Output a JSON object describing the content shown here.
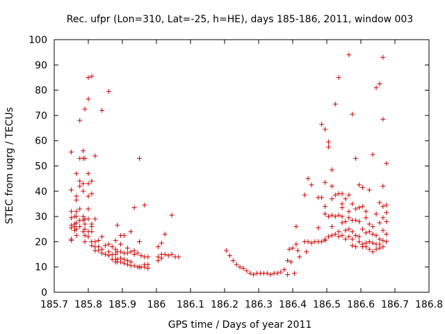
{
  "chart_data": {
    "type": "scatter",
    "title": "Rec. ufpr (Lon=310, Lat=-25, h=HE), days 185-186, 2011, window 003",
    "xlabel": "GPS time / Days of year 2011",
    "ylabel": "STEC from uqrg / TECUs",
    "xlim": [
      185.7,
      186.8
    ],
    "ylim": [
      0,
      100
    ],
    "xticks": [
      185.7,
      185.8,
      185.9,
      186,
      186.1,
      186.2,
      186.3,
      186.4,
      186.5,
      186.6,
      186.7,
      186.8
    ],
    "xtick_labels": [
      "185.7",
      "185.8",
      "185.9",
      "186",
      "186.1",
      "186.2",
      "186.3",
      "186.4",
      "186.5",
      "186.6",
      "186.7",
      "186.8"
    ],
    "yticks": [
      0,
      10,
      20,
      30,
      40,
      50,
      60,
      70,
      80,
      90,
      100
    ],
    "ytick_labels": [
      "0",
      "10",
      "20",
      "30",
      "40",
      "50",
      "60",
      "70",
      "80",
      "90",
      "100"
    ],
    "grid": false,
    "marker": "plus",
    "color": "#cc0000",
    "series": [
      {
        "name": "STEC",
        "points": [
          [
            185.75,
            55.5
          ],
          [
            185.75,
            40.5
          ],
          [
            185.75,
            32
          ],
          [
            185.75,
            29.5
          ],
          [
            185.75,
            26.5
          ],
          [
            185.75,
            25.5
          ],
          [
            185.75,
            21
          ],
          [
            185.75,
            20.5
          ],
          [
            185.76,
            30
          ],
          [
            185.76,
            27
          ],
          [
            185.76,
            26
          ],
          [
            185.76,
            24.5
          ],
          [
            185.765,
            47
          ],
          [
            185.765,
            38
          ],
          [
            185.765,
            36.5
          ],
          [
            185.765,
            32
          ],
          [
            185.765,
            30
          ],
          [
            185.765,
            27.5
          ],
          [
            185.765,
            25
          ],
          [
            185.765,
            22.5
          ],
          [
            185.775,
            68
          ],
          [
            185.775,
            53
          ],
          [
            185.775,
            44
          ],
          [
            185.775,
            42
          ],
          [
            185.775,
            33
          ],
          [
            185.775,
            28.5
          ],
          [
            185.775,
            26
          ],
          [
            185.785,
            56
          ],
          [
            185.785,
            53
          ],
          [
            185.785,
            43
          ],
          [
            185.785,
            40
          ],
          [
            185.785,
            30
          ],
          [
            185.785,
            28.5
          ],
          [
            185.785,
            24
          ],
          [
            185.79,
            72.5
          ],
          [
            185.79,
            53
          ],
          [
            185.79,
            29
          ],
          [
            185.79,
            27
          ],
          [
            185.79,
            25
          ],
          [
            185.79,
            22.5
          ],
          [
            185.79,
            20
          ],
          [
            185.8,
            85
          ],
          [
            185.8,
            76.5
          ],
          [
            185.8,
            47
          ],
          [
            185.8,
            43
          ],
          [
            185.8,
            38
          ],
          [
            185.8,
            33
          ],
          [
            185.8,
            29
          ],
          [
            185.8,
            24
          ],
          [
            185.8,
            22
          ],
          [
            185.81,
            85.5
          ],
          [
            185.81,
            44
          ],
          [
            185.81,
            39
          ],
          [
            185.81,
            27
          ],
          [
            185.81,
            26
          ],
          [
            185.81,
            24
          ],
          [
            185.81,
            20
          ],
          [
            185.81,
            18.5
          ],
          [
            185.82,
            54
          ],
          [
            185.82,
            29
          ],
          [
            185.82,
            20
          ],
          [
            185.82,
            18
          ],
          [
            185.82,
            16.5
          ],
          [
            185.83,
            20.5
          ],
          [
            185.83,
            18
          ],
          [
            185.83,
            16.5
          ],
          [
            185.84,
            72
          ],
          [
            185.84,
            22
          ],
          [
            185.84,
            17
          ],
          [
            185.84,
            15.5
          ],
          [
            185.85,
            18.5
          ],
          [
            185.85,
            15
          ],
          [
            185.86,
            79.5
          ],
          [
            185.86,
            19
          ],
          [
            185.86,
            16
          ],
          [
            185.86,
            14.5
          ],
          [
            185.87,
            18
          ],
          [
            185.87,
            15
          ],
          [
            185.87,
            13
          ],
          [
            185.88,
            20.5
          ],
          [
            185.88,
            17
          ],
          [
            185.88,
            15
          ],
          [
            185.88,
            13
          ],
          [
            185.88,
            12
          ],
          [
            185.885,
            26.5
          ],
          [
            185.885,
            16
          ],
          [
            185.885,
            13
          ],
          [
            185.885,
            12
          ],
          [
            185.895,
            22.5
          ],
          [
            185.895,
            19
          ],
          [
            185.895,
            16
          ],
          [
            185.895,
            13.5
          ],
          [
            185.895,
            12
          ],
          [
            185.905,
            22.5
          ],
          [
            185.905,
            15.5
          ],
          [
            185.905,
            13
          ],
          [
            185.905,
            11.5
          ],
          [
            185.915,
            17.5
          ],
          [
            185.915,
            15.5
          ],
          [
            185.915,
            12.5
          ],
          [
            185.915,
            11
          ],
          [
            185.925,
            24
          ],
          [
            185.925,
            16
          ],
          [
            185.925,
            12
          ],
          [
            185.925,
            10.5
          ],
          [
            185.935,
            33.5
          ],
          [
            185.935,
            16.5
          ],
          [
            185.935,
            15
          ],
          [
            185.935,
            10.5
          ],
          [
            185.945,
            15.5
          ],
          [
            185.945,
            10
          ],
          [
            185.95,
            53
          ],
          [
            185.95,
            20
          ],
          [
            185.95,
            10
          ],
          [
            185.955,
            14.5
          ],
          [
            185.955,
            10
          ],
          [
            185.965,
            34.5
          ],
          [
            185.965,
            14
          ],
          [
            185.965,
            11
          ],
          [
            185.965,
            10
          ],
          [
            185.975,
            14
          ],
          [
            185.975,
            11
          ],
          [
            185.975,
            9.5
          ],
          [
            186.005,
            18
          ],
          [
            186.005,
            14
          ],
          [
            186.005,
            12.5
          ],
          [
            186.015,
            19.5
          ],
          [
            186.015,
            15
          ],
          [
            186.015,
            13.5
          ],
          [
            186.025,
            23
          ],
          [
            186.025,
            15
          ],
          [
            186.035,
            14.5
          ],
          [
            186.045,
            30.5
          ],
          [
            186.045,
            15
          ],
          [
            186.055,
            14
          ],
          [
            186.065,
            14
          ],
          [
            186.205,
            16.5
          ],
          [
            186.215,
            14.5
          ],
          [
            186.225,
            12.5
          ],
          [
            186.235,
            11
          ],
          [
            186.245,
            10
          ],
          [
            186.255,
            9.5
          ],
          [
            186.265,
            8.5
          ],
          [
            186.275,
            7.5
          ],
          [
            186.285,
            7
          ],
          [
            186.295,
            7.5
          ],
          [
            186.305,
            7.5
          ],
          [
            186.315,
            7.5
          ],
          [
            186.325,
            7.5
          ],
          [
            186.335,
            7
          ],
          [
            186.345,
            7.5
          ],
          [
            186.355,
            7.5
          ],
          [
            186.365,
            8
          ],
          [
            186.375,
            9
          ],
          [
            186.385,
            12.5
          ],
          [
            186.385,
            7
          ],
          [
            186.39,
            17
          ],
          [
            186.395,
            12
          ],
          [
            186.4,
            17.5
          ],
          [
            186.405,
            7.5
          ],
          [
            186.41,
            26
          ],
          [
            186.41,
            19
          ],
          [
            186.415,
            16.5
          ],
          [
            186.42,
            14
          ],
          [
            186.435,
            38.5
          ],
          [
            186.435,
            20
          ],
          [
            186.44,
            16
          ],
          [
            186.445,
            45
          ],
          [
            186.445,
            20
          ],
          [
            186.455,
            42.5
          ],
          [
            186.455,
            19.5
          ],
          [
            186.465,
            20
          ],
          [
            186.475,
            37.5
          ],
          [
            186.475,
            25.5
          ],
          [
            186.475,
            20
          ],
          [
            186.485,
            66.5
          ],
          [
            186.485,
            37.5
          ],
          [
            186.485,
            20
          ],
          [
            186.495,
            64.5
          ],
          [
            186.495,
            43.5
          ],
          [
            186.495,
            34
          ],
          [
            186.495,
            31
          ],
          [
            186.495,
            21
          ],
          [
            186.495,
            20.5
          ],
          [
            186.505,
            59.5
          ],
          [
            186.505,
            57.5
          ],
          [
            186.505,
            30
          ],
          [
            186.505,
            22
          ],
          [
            186.515,
            48.5
          ],
          [
            186.515,
            42
          ],
          [
            186.515,
            37
          ],
          [
            186.515,
            30.5
          ],
          [
            186.515,
            26
          ],
          [
            186.515,
            22.5
          ],
          [
            186.525,
            74.5
          ],
          [
            186.525,
            38.5
          ],
          [
            186.525,
            30
          ],
          [
            186.525,
            23
          ],
          [
            186.535,
            85
          ],
          [
            186.535,
            39
          ],
          [
            186.535,
            30.5
          ],
          [
            186.535,
            24
          ],
          [
            186.535,
            22
          ],
          [
            186.545,
            39
          ],
          [
            186.545,
            35
          ],
          [
            186.545,
            33.5
          ],
          [
            186.545,
            30
          ],
          [
            186.545,
            27.5
          ],
          [
            186.545,
            22.5
          ],
          [
            186.555,
            37
          ],
          [
            186.555,
            28
          ],
          [
            186.555,
            24.5
          ],
          [
            186.555,
            21
          ],
          [
            186.565,
            94
          ],
          [
            186.565,
            38.5
          ],
          [
            186.565,
            32
          ],
          [
            186.565,
            29.5
          ],
          [
            186.565,
            25
          ],
          [
            186.565,
            22
          ],
          [
            186.575,
            70.5
          ],
          [
            186.575,
            35
          ],
          [
            186.575,
            28.5
          ],
          [
            186.575,
            24
          ],
          [
            186.575,
            21
          ],
          [
            186.575,
            18.5
          ],
          [
            186.585,
            53
          ],
          [
            186.585,
            33
          ],
          [
            186.585,
            28.5
          ],
          [
            186.585,
            22.5
          ],
          [
            186.585,
            18
          ],
          [
            186.595,
            42.5
          ],
          [
            186.595,
            33.5
          ],
          [
            186.595,
            28
          ],
          [
            186.595,
            22
          ],
          [
            186.595,
            20
          ],
          [
            186.605,
            41.5
          ],
          [
            186.605,
            34
          ],
          [
            186.605,
            25
          ],
          [
            186.605,
            19
          ],
          [
            186.605,
            18
          ],
          [
            186.615,
            32
          ],
          [
            186.615,
            29.5
          ],
          [
            186.615,
            23.5
          ],
          [
            186.615,
            19.5
          ],
          [
            186.615,
            18
          ],
          [
            186.625,
            40.5
          ],
          [
            186.625,
            27
          ],
          [
            186.625,
            24
          ],
          [
            186.625,
            20
          ],
          [
            186.625,
            17
          ],
          [
            186.635,
            54.5
          ],
          [
            186.635,
            26
          ],
          [
            186.635,
            23
          ],
          [
            186.635,
            19.5
          ],
          [
            186.635,
            16
          ],
          [
            186.645,
            81
          ],
          [
            186.645,
            31
          ],
          [
            186.645,
            22.5
          ],
          [
            186.645,
            19
          ],
          [
            186.645,
            17
          ],
          [
            186.655,
            82.5
          ],
          [
            186.655,
            35.5
          ],
          [
            186.655,
            27.5
          ],
          [
            186.655,
            21
          ],
          [
            186.655,
            19
          ],
          [
            186.655,
            17.5
          ],
          [
            186.665,
            93
          ],
          [
            186.665,
            68.5
          ],
          [
            186.665,
            42
          ],
          [
            186.665,
            34
          ],
          [
            186.665,
            29.5
          ],
          [
            186.665,
            24.5
          ],
          [
            186.665,
            20.5
          ],
          [
            186.665,
            18
          ],
          [
            186.675,
            51
          ],
          [
            186.675,
            34.5
          ],
          [
            186.675,
            31.5
          ],
          [
            186.675,
            28
          ],
          [
            186.675,
            23
          ],
          [
            186.675,
            20
          ]
        ]
      }
    ]
  }
}
